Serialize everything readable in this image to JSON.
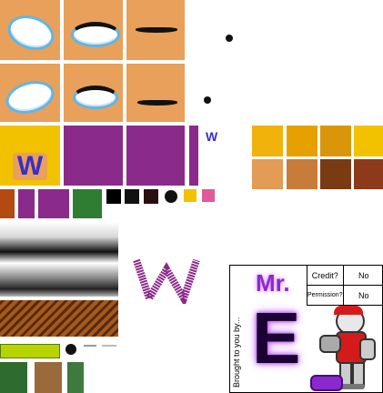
{
  "credit_sheet": {
    "title_mr": "Mr.",
    "title_letter": "E",
    "brought_by": "Brought to you by...",
    "rows": [
      {
        "label": "Credit?",
        "value": "No"
      },
      {
        "label": "Permission?",
        "value": "No"
      }
    ]
  },
  "sprite_text": {
    "w_small": "W",
    "w_badge": "W",
    "w_lattice": "W"
  },
  "colors": {
    "skin": "#e8a05a",
    "purple": "#8a2a8a",
    "yellow": "#f2c200",
    "green": "#2e7d32",
    "wood": "#8a4a1a"
  }
}
